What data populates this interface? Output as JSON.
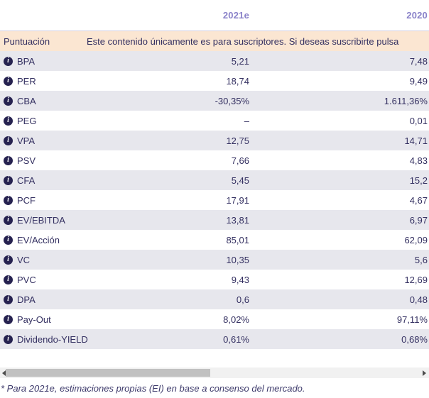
{
  "table": {
    "columns": [
      "2021e",
      "2020"
    ],
    "score_header": "Puntuación",
    "subscribe_message": "Este contenido únicamente es para suscriptores. Si deseas suscribirte pulsa",
    "info_icon_glyph": "i",
    "rows": [
      {
        "label": "BPA",
        "v2021e": "5,21",
        "v2020": "7,48"
      },
      {
        "label": "PER",
        "v2021e": "18,74",
        "v2020": "9,49"
      },
      {
        "label": "CBA",
        "v2021e": "-30,35%",
        "v2020": "1.611,36%"
      },
      {
        "label": "PEG",
        "v2021e": "–",
        "v2020": "0,01"
      },
      {
        "label": "VPA",
        "v2021e": "12,75",
        "v2020": "14,71"
      },
      {
        "label": "PSV",
        "v2021e": "7,66",
        "v2020": "4,83"
      },
      {
        "label": "CFA",
        "v2021e": "5,45",
        "v2020": "15,2"
      },
      {
        "label": "PCF",
        "v2021e": "17,91",
        "v2020": "4,67"
      },
      {
        "label": "EV/EBITDA",
        "v2021e": "13,81",
        "v2020": "6,97"
      },
      {
        "label": "EV/Acción",
        "v2021e": "85,01",
        "v2020": "62,09"
      },
      {
        "label": "VC",
        "v2021e": "10,35",
        "v2020": "5,6"
      },
      {
        "label": "PVC",
        "v2021e": "9,43",
        "v2020": "12,69"
      },
      {
        "label": "DPA",
        "v2021e": "0,6",
        "v2020": "0,48"
      },
      {
        "label": "Pay-Out",
        "v2021e": "8,02%",
        "v2020": "97,11%"
      },
      {
        "label": "Dividendo-YIELD",
        "v2021e": "0,61%",
        "v2020": "0,68%"
      }
    ]
  },
  "footnote": "* Para 2021e, estimaciones propias (EI) en base a consenso del mercado.",
  "colors": {
    "header_accent": "#8a82c9",
    "banner_bg": "#fbe6d2",
    "row_alt_bg": "#e7e7ed",
    "text_navy": "#343061",
    "icon_bg": "#262250",
    "scrollbar_track": "#f1f1f1",
    "scrollbar_thumb": "#c1c1c1"
  }
}
